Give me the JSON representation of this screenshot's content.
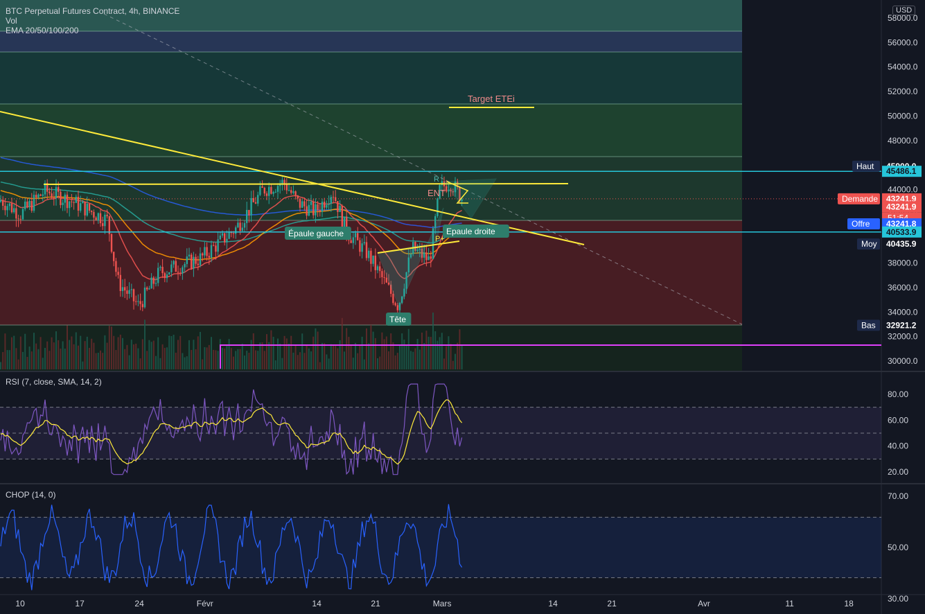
{
  "header": {
    "symbol_line": "BTC Perpetual Futures Contract, 4h, BINANCE",
    "vol_label": "Vol",
    "ema_label": "EMA 20/50/100/200",
    "currency_badge": "USD"
  },
  "annotations": {
    "target": "Target ETEi",
    "left_shoulder": "Épaule gauche",
    "right_shoulder": "Epaule droite",
    "head": "Tête",
    "r_label": "R",
    "entry_label": "ENT",
    "p_label": "P+"
  },
  "price_axis": {
    "ticks": [
      "58000.0",
      "56000.0",
      "54000.0",
      "52000.0",
      "50000.0",
      "48000.0",
      "46000.0",
      "44000.0",
      "42000.0",
      "38000.0",
      "36000.0",
      "34000.0",
      "32000.0",
      "30000.0"
    ],
    "tick_values": [
      58000,
      56000,
      54000,
      52000,
      50000,
      48000,
      46000,
      44000,
      42000,
      38000,
      36000,
      34000,
      32000,
      30000
    ]
  },
  "price_badges": [
    {
      "label": "Haut",
      "value": "45900.0",
      "price": 45900,
      "label_color": "#1e2a4a",
      "value_color": "#131722",
      "text_color": "#ffffff"
    },
    {
      "label": "",
      "value": "45486.1",
      "price": 45486.1,
      "label_color": "",
      "value_color": "#26c6da",
      "text_color": "#131722"
    },
    {
      "label": "Demande",
      "value": "43241.9",
      "price": 43241.9,
      "label_color": "#ef5350",
      "value_color": "#ef5350",
      "text_color": "#ffffff"
    },
    {
      "label": "",
      "value": "43241.9",
      "price": 42600,
      "label_color": "",
      "value_color": "#ef5350",
      "text_color": "#ffffff",
      "sub": "51:54"
    },
    {
      "label": "Offre",
      "value": "43241.8",
      "price": 41200,
      "label_color": "#2962ff",
      "value_color": "#2962ff",
      "text_color": "#ffffff"
    },
    {
      "label": "",
      "value": "40533.9",
      "price": 40533.9,
      "label_color": "",
      "value_color": "#26c6da",
      "text_color": "#131722"
    },
    {
      "label": "Moy",
      "value": "40435.9",
      "price": 39550,
      "label_color": "#1e2a4a",
      "value_color": "#131722",
      "text_color": "#ffffff"
    },
    {
      "label": "Bas",
      "value": "32921.2",
      "price": 32921.2,
      "label_color": "#1e2a4a",
      "value_color": "#131722",
      "text_color": "#ffffff"
    }
  ],
  "x_axis": {
    "labels": [
      "10",
      "17",
      "24",
      "Févr",
      "14",
      "21",
      "Mars",
      "14",
      "21",
      "Avr",
      "11",
      "18"
    ]
  },
  "rsi": {
    "title": "RSI (7, close, SMA, 14, 2)",
    "ticks": [
      "80.00",
      "60.00",
      "40.00",
      "20.00"
    ],
    "tick_values": [
      80,
      60,
      40,
      20
    ],
    "bands": [
      70,
      50,
      30
    ]
  },
  "chop": {
    "title": "CHOP (14, 0)",
    "ticks": [
      "70.00",
      "50.00",
      "30.00"
    ],
    "tick_values": [
      70,
      50,
      30
    ],
    "bands": [
      61.8,
      38.2
    ]
  },
  "colors": {
    "background": "#131722",
    "ema20": "#ef5350",
    "ema50": "#ff9800",
    "ema100": "#26a69a",
    "ema200": "#2962ff",
    "up_candle": "#26a69a",
    "down_candle": "#ef5350",
    "trendline": "#ffeb3b",
    "cyan_line": "#26c6da",
    "rsi_line": "#7e57c2",
    "rsi_ma": "#ffeb3b",
    "chop_line": "#2962ff",
    "purple_line": "#e040fb"
  },
  "chart_data": {
    "type": "candlestick",
    "timeframe": "4h",
    "symbol": "BTC Perpetual Futures Contract, 4h, BINANCE",
    "price_range": [
      29500,
      59000
    ],
    "key_levels": {
      "Haut": 45900.0,
      "Moy": 40435.9,
      "Bas": 32921.2,
      "cyan_upper": 45486.1,
      "cyan_lower": 40533.9,
      "target_etei": 50700,
      "purple_support": 31200
    },
    "approx_closes": [
      {
        "date": "Jan 06",
        "close": 43200
      },
      {
        "date": "Jan 10",
        "close": 42000
      },
      {
        "date": "Jan 13",
        "close": 43900
      },
      {
        "date": "Jan 17",
        "close": 43000
      },
      {
        "date": "Jan 20",
        "close": 41500
      },
      {
        "date": "Jan 22",
        "close": 36500
      },
      {
        "date": "Jan 24",
        "close": 34500
      },
      {
        "date": "Jan 27",
        "close": 37200
      },
      {
        "date": "Jan 31",
        "close": 38400
      },
      {
        "date": "Feb 04",
        "close": 40800
      },
      {
        "date": "Feb 07",
        "close": 44000
      },
      {
        "date": "Feb 09",
        "close": 44600
      },
      {
        "date": "Feb 11",
        "close": 42900
      },
      {
        "date": "Feb 14",
        "close": 42200
      },
      {
        "date": "Feb 16",
        "close": 43900
      },
      {
        "date": "Feb 18",
        "close": 40600
      },
      {
        "date": "Feb 21",
        "close": 38800
      },
      {
        "date": "Feb 24",
        "close": 34500
      },
      {
        "date": "Feb 26",
        "close": 39200
      },
      {
        "date": "Feb 28",
        "close": 38200
      },
      {
        "date": "Mar 01",
        "close": 44100
      },
      {
        "date": "Mar 02",
        "close": 44600
      },
      {
        "date": "Mar 03",
        "close": 43241.9
      }
    ]
  }
}
